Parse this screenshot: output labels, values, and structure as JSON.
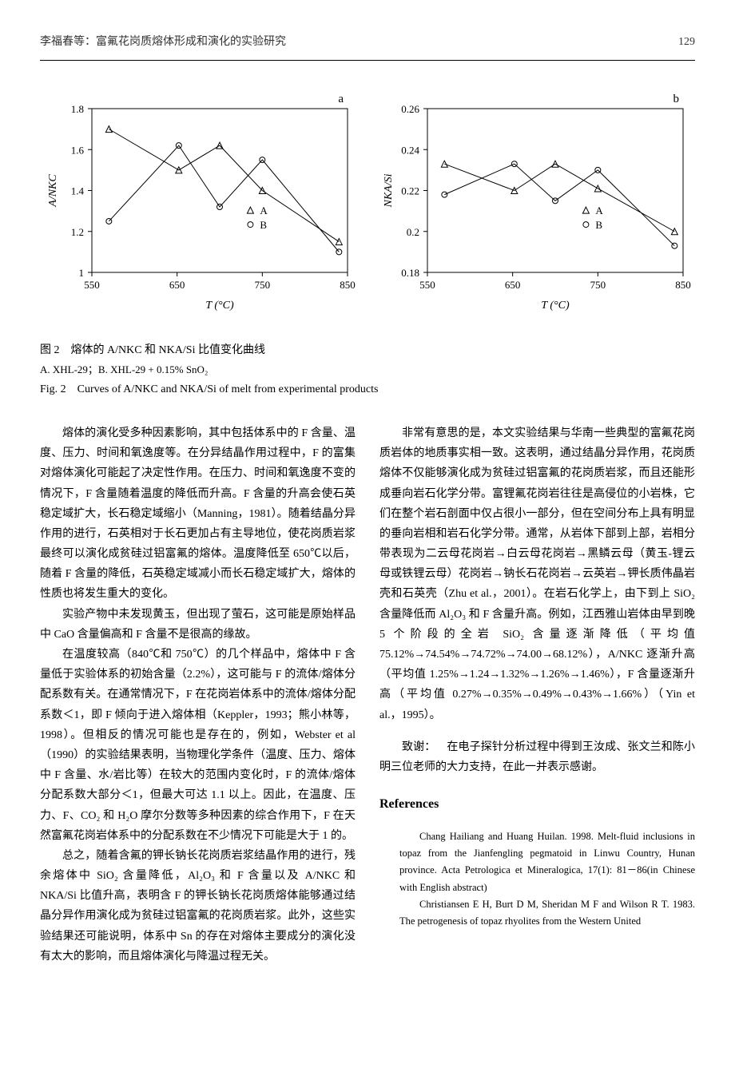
{
  "header": {
    "title": "李福春等：富氟花岗质熔体形成和演化的实验研究",
    "page": "129"
  },
  "chart_a": {
    "type": "line",
    "panel_label": "a",
    "xlabel": "T (°C)",
    "ylabel": "A/NKC",
    "xlim": [
      550,
      850
    ],
    "ylim": [
      1.0,
      1.8
    ],
    "xticks": [
      550,
      650,
      750,
      850
    ],
    "yticks": [
      1.0,
      1.2,
      1.4,
      1.6,
      1.8
    ],
    "ylabel_fontsize": 14,
    "xlabel_fontsize": 14,
    "tick_fontsize": 13,
    "series": [
      {
        "name": "A",
        "marker": "triangle",
        "color": "#000000",
        "line_width": 1,
        "points": [
          {
            "x": 570,
            "y": 1.7
          },
          {
            "x": 652,
            "y": 1.5
          },
          {
            "x": 700,
            "y": 1.62
          },
          {
            "x": 750,
            "y": 1.4
          },
          {
            "x": 840,
            "y": 1.15
          }
        ]
      },
      {
        "name": "B",
        "marker": "circle",
        "color": "#000000",
        "line_width": 1,
        "points": [
          {
            "x": 570,
            "y": 1.25
          },
          {
            "x": 652,
            "y": 1.62
          },
          {
            "x": 700,
            "y": 1.32
          },
          {
            "x": 750,
            "y": 1.55
          },
          {
            "x": 840,
            "y": 1.1
          }
        ]
      }
    ],
    "legend_items": [
      {
        "label": "A",
        "marker": "triangle"
      },
      {
        "label": "B",
        "marker": "circle"
      }
    ],
    "background_color": "#ffffff",
    "axis_color": "#000000"
  },
  "chart_b": {
    "type": "line",
    "panel_label": "b",
    "xlabel": "T (°C)",
    "ylabel": "NKA/Si",
    "xlim": [
      550,
      850
    ],
    "ylim": [
      0.18,
      0.26
    ],
    "xticks": [
      550,
      650,
      750,
      850
    ],
    "yticks": [
      0.18,
      0.2,
      0.22,
      0.24,
      0.26
    ],
    "ylabel_fontsize": 14,
    "xlabel_fontsize": 14,
    "tick_fontsize": 13,
    "series": [
      {
        "name": "A",
        "marker": "triangle",
        "color": "#000000",
        "line_width": 1,
        "points": [
          {
            "x": 570,
            "y": 0.233
          },
          {
            "x": 652,
            "y": 0.22
          },
          {
            "x": 700,
            "y": 0.233
          },
          {
            "x": 750,
            "y": 0.221
          },
          {
            "x": 840,
            "y": 0.2
          }
        ]
      },
      {
        "name": "B",
        "marker": "circle",
        "color": "#000000",
        "line_width": 1,
        "points": [
          {
            "x": 570,
            "y": 0.218
          },
          {
            "x": 652,
            "y": 0.233
          },
          {
            "x": 700,
            "y": 0.215
          },
          {
            "x": 750,
            "y": 0.23
          },
          {
            "x": 840,
            "y": 0.193
          }
        ]
      }
    ],
    "legend_items": [
      {
        "label": "A",
        "marker": "triangle"
      },
      {
        "label": "B",
        "marker": "circle"
      }
    ],
    "background_color": "#ffffff",
    "axis_color": "#000000"
  },
  "figure_caption": {
    "line1": "图 2　熔体的 A/NKC 和 NKA/Si 比值变化曲线",
    "line2": "A. XHL-29；B. XHL-29 + 0.15% SnO₂",
    "line3": "Fig. 2　Curves of A/NKC and NKA/Si of melt from experimental products"
  },
  "paragraphs": [
    "熔体的演化受多种因素影响，其中包括体系中的 F 含量、温度、压力、时间和氧逸度等。在分异结晶作用过程中，F 的富集对熔体演化可能起了决定性作用。在压力、时间和氧逸度不变的情况下，F 含量随着温度的降低而升高。F 含量的升高会使石英稳定域扩大，长石稳定域缩小（Manning，1981）。随着结晶分异作用的进行，石英相对于长石更加占有主导地位，使花岗质岩浆最终可以演化成贫硅过铝富氟的熔体。温度降低至 650℃以后，随着 F 含量的降低，石英稳定域减小而长石稳定域扩大，熔体的性质也将发生重大的变化。",
    "实验产物中未发现黄玉，但出现了萤石，这可能是原始样品中 CaO 含量偏高和 F 含量不是很高的缘故。",
    "在温度较高（840℃和 750℃）的几个样品中，熔体中 F 含量低于实验体系的初始含量（2.2%），这可能与 F 的流体/熔体分配系数有关。在通常情况下，F 在花岗岩体系中的流体/熔体分配系数＜1，即 F 倾向于进入熔体相（Keppler，1993；熊小林等，1998）。但相反的情况可能也是存在的，例如，Webster et al（1990）的实验结果表明，当物理化学条件（温度、压力、熔体中 F 含量、水/岩比等）在较大的范围内变化时，F 的流体/熔体分配系数大部分＜1，但最大可达 1.1 以上。因此，在温度、压力、F、CO₂ 和 H₂O 摩尔分数等多种因素的综合作用下，F 在天然富氟花岗岩体系中的分配系数在不少情况下可能是大于 1 的。",
    "总之，随着含氟的钾长钠长花岗质岩浆结晶作用的进行，残余熔体中 SiO₂ 含量降低，Al₂O₃ 和 F 含量以及 A/NKC 和 NKA/Si 比值升高，表明含 F 的钾长钠长花岗质熔体能够通过结晶分异作用演化成为贫硅过铝富氟的花岗质岩浆。此外，这些实验结果还可能说明，体系中 Sn 的存在对熔体主要成分的演化没有太大的影响，而且熔体演化与降温过程无关。",
    "非常有意思的是，本文实验结果与华南一些典型的富氟花岗质岩体的地质事实相一致。这表明，通过结晶分异作用，花岗质熔体不仅能够演化成为贫硅过铝富氟的花岗质岩浆，而且还能形成垂向岩石化学分带。富锂氟花岗岩往往是高侵位的小岩株，它们在整个岩石剖面中仅占很小一部分，但在空间分布上具有明显的垂向岩相和岩石化学分带。通常，从岩体下部到上部，岩相分带表现为二云母花岗岩→白云母花岗岩→黑鳞云母（黄玉-锂云母或铁锂云母）花岗岩→钠长石花岗岩→云英岩→钾长质伟晶岩壳和石英壳（Zhu et al.，2001）。在岩石化学上，由下到上 SiO₂ 含量降低而 Al₂O₃ 和 F 含量升高。例如，江西雅山岩体由早到晚 5 个阶段的全岩 SiO₂ 含量逐渐降低（平均值 75.12%→74.54%→74.72%→74.00→68.12%），A/NKC 逐渐升高（平均值 1.25%→1.24→1.32%→1.26%→1.46%），F 含量逐渐升高（平均值 0.27%→0.35%→0.49%→0.43%→1.66%）（Yin et al.，1995）。"
  ],
  "acknowledgment": {
    "label": "致谢：",
    "text": "在电子探针分析过程中得到王汝成、张文兰和陈小明三位老师的大力支持，在此一并表示感谢。"
  },
  "references_heading": "References",
  "references": [
    "Chang Hailiang and Huang Huilan. 1998. Melt-fluid inclusions in topaz from the Jianfengling pegmatoid in Linwu Country, Hunan province. Acta Petrologica et Mineralogica, 17(1): 81－86(in Chinese with English abstract)",
    "Christiansen E H, Burt D M, Sheridan M F and Wilson R T. 1983. The petrogenesis of topaz rhyolites from the Western United"
  ]
}
